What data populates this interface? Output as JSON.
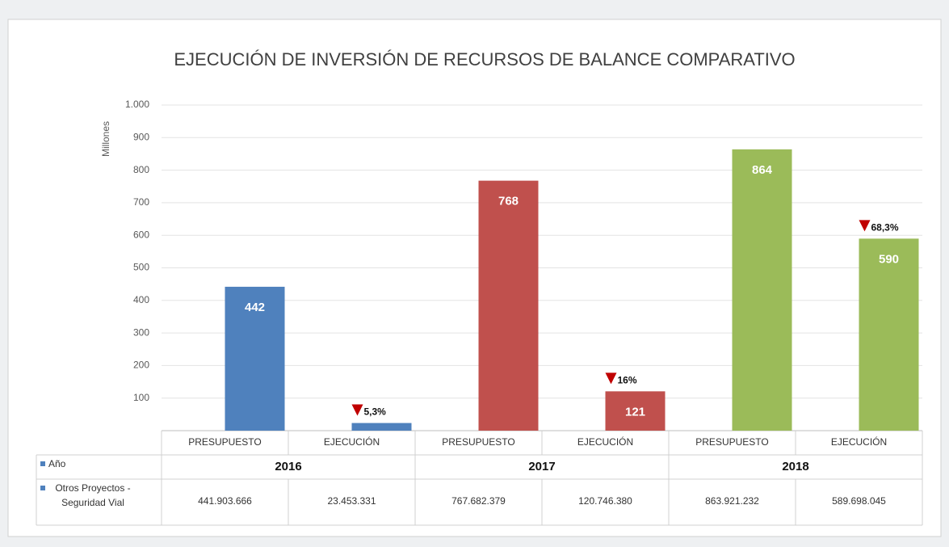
{
  "chart_data": {
    "type": "bar",
    "title": "EJECUCIÓN DE INVERSIÓN DE RECURSOS DE BALANCE COMPARATIVO",
    "y_label": "Millones",
    "categories": [
      "PRESUPUESTO",
      "EJECUCIÓN",
      "PRESUPUESTO",
      "EJECUCIÓN",
      "PRESUPUESTO",
      "EJECUCIÓN"
    ],
    "values": [
      441.903666,
      23.453331,
      767.682379,
      120.74638,
      863.921232,
      589.698045
    ],
    "value_labels": [
      "442",
      null,
      "768",
      "121",
      "864",
      "590"
    ],
    "change_labels": [
      null,
      "5,3%",
      null,
      "16%",
      null,
      "68,3%"
    ],
    "colors": [
      "#4f81bd",
      "#4f81bd",
      "#c0504d",
      "#c0504d",
      "#9bbb59",
      "#9bbb59"
    ],
    "ylim": [
      0,
      1000
    ],
    "yticks": [
      100,
      200,
      300,
      400,
      500,
      600,
      700,
      800,
      900,
      {
        "value": 1000,
        "label": "1.000"
      }
    ],
    "grid": true,
    "data_table": {
      "years": [
        "2016",
        "2017",
        "2018"
      ],
      "rows": [
        {
          "label": "Año"
        },
        {
          "label": "Otros Proyectos - Seguridad Vial",
          "cells": [
            "441.903.666",
            "23.453.331",
            "767.682.379",
            "120.746.380",
            "863.921.232",
            "589.698.045"
          ]
        }
      ]
    }
  }
}
